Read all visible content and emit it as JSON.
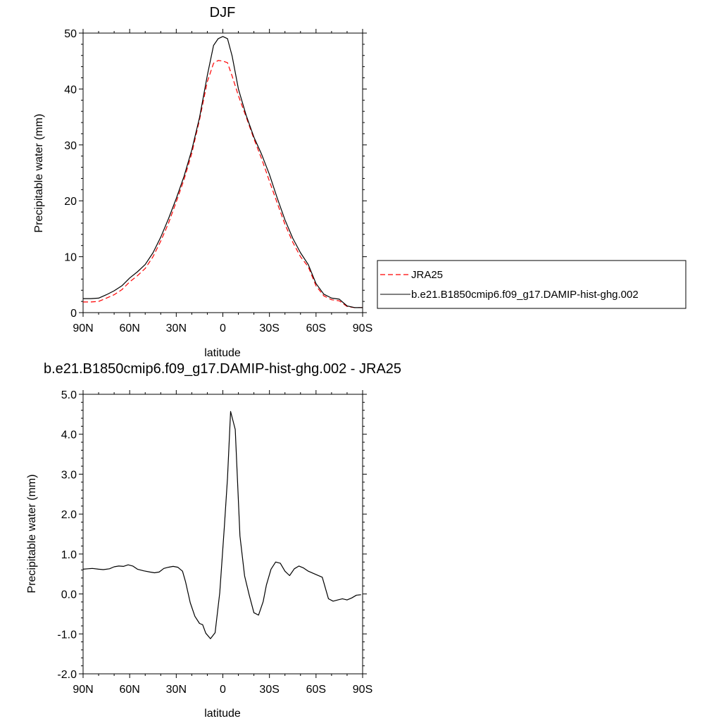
{
  "chart_data": [
    {
      "type": "line",
      "title": "DJF",
      "xlabel": "latitude",
      "ylabel": "Precipitable water (mm)",
      "xlim": [
        90,
        -90
      ],
      "ylim": [
        0,
        50
      ],
      "x_ticks": [
        {
          "value": 90,
          "label": "90N"
        },
        {
          "value": 60,
          "label": "60N"
        },
        {
          "value": 30,
          "label": "30N"
        },
        {
          "value": 0,
          "label": "0"
        },
        {
          "value": -30,
          "label": "30S"
        },
        {
          "value": -60,
          "label": "60S"
        },
        {
          "value": -90,
          "label": "90S"
        }
      ],
      "y_ticks": [
        {
          "value": 0,
          "label": "0"
        },
        {
          "value": 10,
          "label": "10"
        },
        {
          "value": 20,
          "label": "20"
        },
        {
          "value": 30,
          "label": "30"
        },
        {
          "value": 40,
          "label": "40"
        },
        {
          "value": 50,
          "label": "50"
        }
      ],
      "grid": false,
      "legend_placement": "right",
      "series": [
        {
          "name": "JRA25",
          "color": "#ff0000",
          "style": "dashed",
          "x": [
            90,
            85,
            80,
            75,
            70,
            65,
            60,
            55,
            50,
            45,
            40,
            35,
            30,
            25,
            20,
            15,
            10,
            6,
            3,
            0,
            -3,
            -6,
            -10,
            -15,
            -20,
            -25,
            -30,
            -35,
            -40,
            -45,
            -50,
            -55,
            -60,
            -65,
            -70,
            -75,
            -80,
            -85,
            -90
          ],
          "values": [
            1.9,
            1.9,
            2.0,
            2.6,
            3.2,
            4.1,
            5.5,
            6.6,
            7.9,
            10.0,
            12.8,
            16.0,
            19.8,
            23.8,
            28.5,
            34.5,
            41.3,
            44.6,
            45.1,
            45.0,
            44.7,
            42.3,
            38.8,
            35.0,
            31.1,
            27.5,
            23.5,
            19.6,
            15.8,
            12.6,
            10.0,
            8.2,
            4.8,
            3.0,
            2.3,
            2.1,
            1.1,
            0.9,
            0.9
          ]
        },
        {
          "name": "b.e21.B1850cmip6.f09_g17.DAMIP-hist-ghg.002",
          "color": "#000000",
          "style": "solid",
          "x": [
            90,
            85,
            80,
            75,
            70,
            65,
            60,
            55,
            50,
            45,
            40,
            35,
            30,
            25,
            20,
            15,
            10,
            6,
            3,
            0,
            -3,
            -6,
            -10,
            -15,
            -20,
            -25,
            -30,
            -35,
            -40,
            -45,
            -50,
            -55,
            -60,
            -65,
            -70,
            -75,
            -80,
            -85,
            -90
          ],
          "values": [
            2.5,
            2.5,
            2.6,
            3.2,
            3.9,
            4.8,
            6.2,
            7.3,
            8.6,
            10.7,
            13.5,
            16.8,
            20.4,
            24.4,
            29.1,
            34.9,
            42.4,
            47.8,
            49.0,
            49.4,
            49.0,
            45.9,
            40.0,
            35.3,
            31.4,
            28.3,
            24.7,
            20.5,
            16.6,
            13.3,
            10.7,
            8.6,
            5.2,
            3.3,
            2.6,
            2.4,
            1.2,
            0.9,
            0.9
          ]
        }
      ]
    },
    {
      "type": "line",
      "title": "b.e21.B1850cmip6.f09_g17.DAMIP-hist-ghg.002 - JRA25",
      "xlabel": "latitude",
      "ylabel": "Precipitable water (mm)",
      "xlim": [
        90,
        -90
      ],
      "ylim": [
        -2.0,
        5.0
      ],
      "x_ticks": [
        {
          "value": 90,
          "label": "90N"
        },
        {
          "value": 60,
          "label": "60N"
        },
        {
          "value": 30,
          "label": "30N"
        },
        {
          "value": 0,
          "label": "0"
        },
        {
          "value": -30,
          "label": "30S"
        },
        {
          "value": -60,
          "label": "60S"
        },
        {
          "value": -90,
          "label": "90S"
        }
      ],
      "y_ticks": [
        {
          "value": -2.0,
          "label": "-2.0"
        },
        {
          "value": -1.0,
          "label": "-1.0"
        },
        {
          "value": 0.0,
          "label": "0.0"
        },
        {
          "value": 1.0,
          "label": "1.0"
        },
        {
          "value": 2.0,
          "label": "2.0"
        },
        {
          "value": 3.0,
          "label": "3.0"
        },
        {
          "value": 4.0,
          "label": "4.0"
        },
        {
          "value": 5.0,
          "label": "5.0"
        }
      ],
      "grid": false,
      "series": [
        {
          "color": "#000000",
          "style": "solid",
          "x": [
            90,
            87,
            84,
            80,
            77,
            73,
            70,
            67,
            64,
            61,
            58,
            55,
            51,
            47,
            44,
            41,
            38,
            35,
            32,
            29,
            26,
            24,
            21,
            18,
            15,
            13,
            11,
            8,
            5,
            2,
            -1,
            -3,
            -5,
            -8,
            -11,
            -14,
            -17,
            -20,
            -23,
            -26,
            -28,
            -31,
            -34,
            -37,
            -40,
            -43,
            -46,
            -49,
            -52,
            -55,
            -58,
            -61,
            -64,
            -68,
            -71,
            -74,
            -77,
            -80,
            -83,
            -86,
            -89
          ],
          "values": [
            0.62,
            0.63,
            0.64,
            0.62,
            0.61,
            0.63,
            0.68,
            0.7,
            0.69,
            0.73,
            0.7,
            0.62,
            0.58,
            0.55,
            0.53,
            0.55,
            0.64,
            0.67,
            0.69,
            0.67,
            0.57,
            0.3,
            -0.22,
            -0.56,
            -0.74,
            -0.77,
            -0.98,
            -1.12,
            -0.97,
            0.03,
            1.7,
            2.9,
            4.57,
            4.12,
            1.45,
            0.45,
            -0.03,
            -0.47,
            -0.53,
            -0.19,
            0.22,
            0.62,
            0.8,
            0.77,
            0.57,
            0.46,
            0.63,
            0.7,
            0.65,
            0.57,
            0.52,
            0.47,
            0.42,
            -0.12,
            -0.18,
            -0.15,
            -0.12,
            -0.15,
            -0.1,
            -0.03,
            -0.02
          ]
        }
      ]
    }
  ]
}
